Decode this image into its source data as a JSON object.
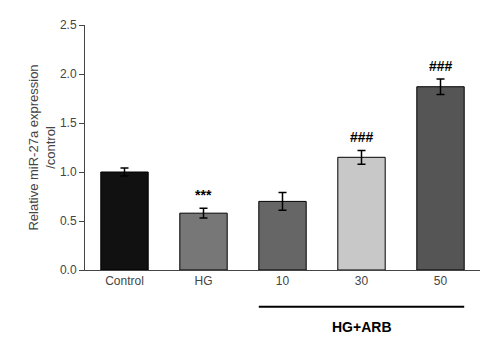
{
  "chart_data": {
    "type": "bar",
    "categories": [
      "Control",
      "HG",
      "10",
      "30",
      "50"
    ],
    "values": [
      1.0,
      0.58,
      0.7,
      1.15,
      1.87
    ],
    "errors": [
      0.04,
      0.05,
      0.09,
      0.07,
      0.08
    ],
    "colors": [
      "#111111",
      "#777777",
      "#666666",
      "#c8c8c8",
      "#555555"
    ],
    "ylabel": "Relative miR-27a expression\n/control",
    "ylim": [
      0,
      2.5
    ],
    "yticks": [
      {
        "value": 0.0,
        "label": "0.0"
      },
      0.5,
      {
        "value": 1.0,
        "label": "1.0"
      },
      1.5,
      {
        "value": 2.0,
        "label": "2.0"
      },
      2.5
    ],
    "grid": false,
    "annotations": [
      {
        "category": "HG",
        "text": "***"
      },
      {
        "category": "30",
        "text": "###"
      },
      {
        "category": "50",
        "text": "###"
      }
    ],
    "bracket": {
      "from": "10",
      "to": "50",
      "text": "HG+ARB"
    }
  }
}
